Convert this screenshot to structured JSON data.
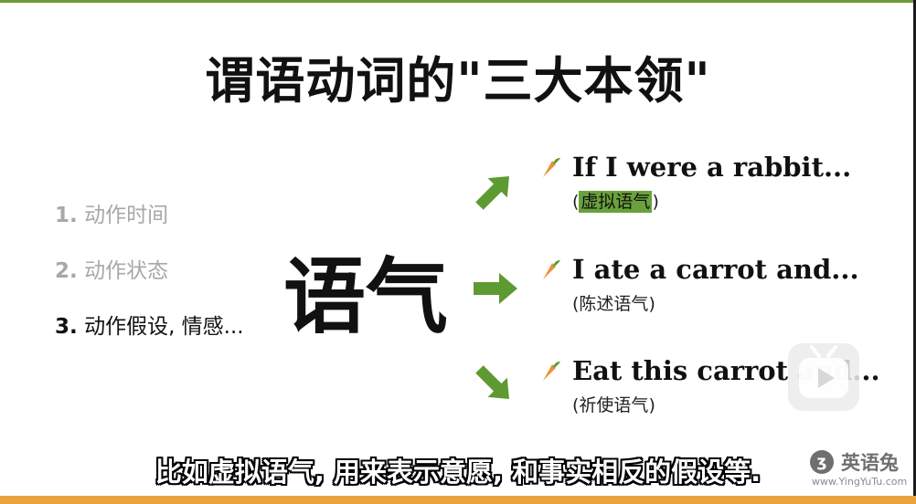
{
  "title": "谓语动词的\"三大本领\"",
  "steps": [
    {
      "num": "1.",
      "label": "动作时间"
    },
    {
      "num": "2.",
      "label": "动作状态"
    },
    {
      "num": "3.",
      "label": "动作假设, 情感..."
    }
  ],
  "mood_label": "语气",
  "examples": [
    {
      "sentence": "If I were a rabbit...",
      "open": "(",
      "type": "虚拟语气",
      "close": ")"
    },
    {
      "sentence": "I ate a carrot and...",
      "open": "(",
      "type": "陈述语气",
      "close": ")"
    },
    {
      "sentence": "Eat this carrot and...",
      "open": "(",
      "type": "祈使语气",
      "close": ")"
    }
  ],
  "subtitle": "比如虚拟语气, 用来表示意愿, 和事实相反的假设等.",
  "logo": {
    "name": "英语兔",
    "url": "www.YingYuTu.com"
  },
  "colors": {
    "accent_green": "#6aa13c",
    "arrow_green": "#5e9a32",
    "bottom_bar": "#e8a33d",
    "carrot": "#e9913a"
  },
  "icons": {
    "arrow": "arrow-icon",
    "carrot": "carrot-icon",
    "play": "play-icon"
  }
}
